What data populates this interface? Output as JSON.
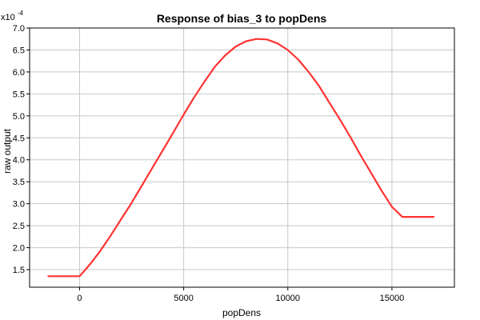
{
  "chart_data": {
    "type": "line",
    "title": "Response of bias_3 to popDens",
    "xlabel": "popDens",
    "ylabel": "raw output",
    "y_multiplier": {
      "base": "x10",
      "exponent": "-4"
    },
    "xlim": [
      -2400,
      18000
    ],
    "ylim": [
      1.1,
      7.0
    ],
    "x_ticks": [
      0,
      5000,
      10000,
      15000
    ],
    "y_ticks": [
      1.5,
      2.0,
      2.5,
      3.0,
      3.5,
      4.0,
      4.5,
      5.0,
      5.5,
      6.0,
      6.5,
      7.0
    ],
    "grid": true,
    "series": [
      {
        "color": "#ff3333",
        "x": [
          -1500,
          0,
          500,
          1000,
          1500,
          2000,
          2500,
          3000,
          3500,
          4000,
          4500,
          5000,
          5500,
          6000,
          6500,
          7000,
          7500,
          8000,
          8500,
          9000,
          9500,
          10000,
          10500,
          11000,
          11500,
          12000,
          12500,
          13000,
          13500,
          14000,
          14500,
          15000,
          15500,
          17000
        ],
        "y": [
          1.35,
          1.35,
          1.62,
          1.93,
          2.28,
          2.65,
          3.02,
          3.42,
          3.82,
          4.22,
          4.62,
          5.03,
          5.42,
          5.78,
          6.12,
          6.38,
          6.58,
          6.7,
          6.75,
          6.74,
          6.65,
          6.5,
          6.28,
          6.0,
          5.68,
          5.3,
          4.92,
          4.52,
          4.1,
          3.7,
          3.3,
          2.93,
          2.7,
          2.7
        ]
      }
    ]
  }
}
